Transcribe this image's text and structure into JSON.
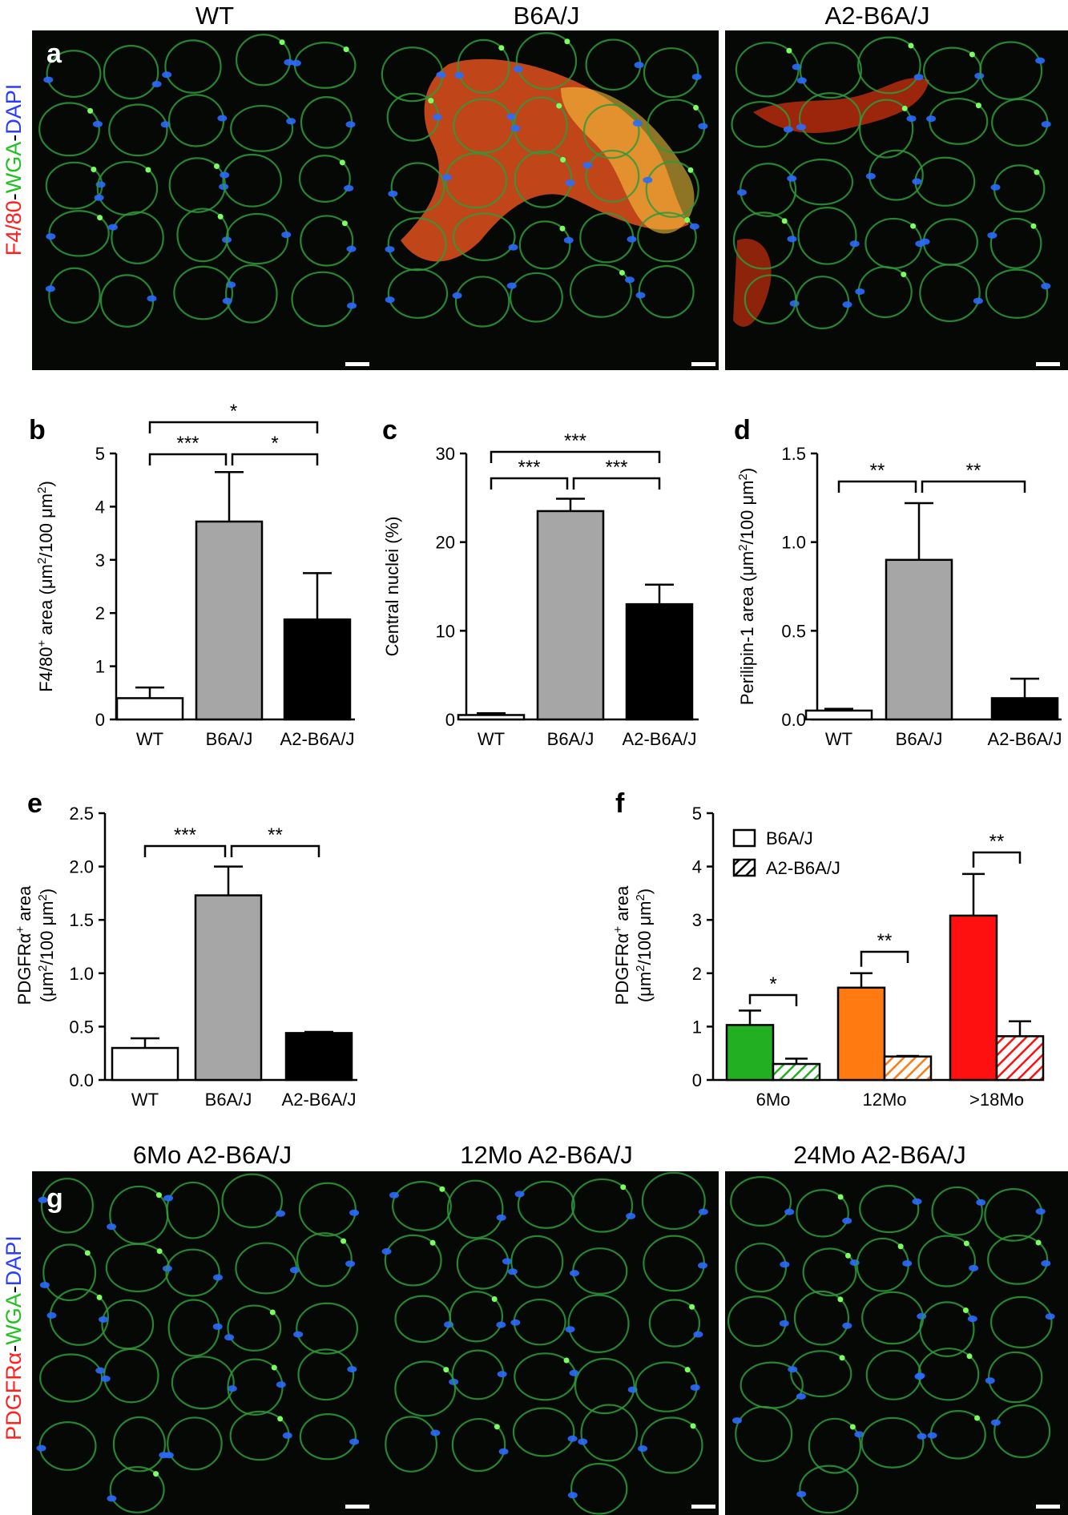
{
  "figure": {
    "top_headers": [
      "WT",
      "B6A/J",
      "A2-B6A/J"
    ],
    "bottom_headers": [
      "6Mo A2-B6A/J",
      "12Mo A2-B6A/J",
      "24Mo A2-B6A/J"
    ],
    "stain_a": {
      "parts": [
        {
          "text": "F4/80",
          "color": "#ff2020"
        },
        {
          "text": "-",
          "color": "#000000"
        },
        {
          "text": "WGA",
          "color": "#22c022"
        },
        {
          "text": "-",
          "color": "#000000"
        },
        {
          "text": "DAPI",
          "color": "#2a3cff"
        }
      ]
    },
    "stain_g": {
      "parts": [
        {
          "text": "PDGFRα",
          "color": "#ff2020"
        },
        {
          "text": "-",
          "color": "#000000"
        },
        {
          "text": "WGA",
          "color": "#22c022"
        },
        {
          "text": "-",
          "color": "#000000"
        },
        {
          "text": "DAPI",
          "color": "#2a3cff"
        }
      ]
    },
    "panel_letters": {
      "a": "a",
      "b": "b",
      "c": "c",
      "d": "d",
      "e": "e",
      "f": "f",
      "g": "g"
    },
    "colors": {
      "wt_fill": "#ffffff",
      "b6aj_fill": "#a6a6a6",
      "a2_fill": "#000000",
      "six_mo": "#22b022",
      "twelve_mo": "#ff7a10",
      "eighteen_mo": "#ff1010"
    }
  },
  "chart_data": [
    {
      "id": "b",
      "type": "bar",
      "categories": [
        "WT",
        "B6A/J",
        "A2-B6A/J"
      ],
      "values": [
        0.4,
        3.72,
        1.88
      ],
      "errors": [
        0.2,
        0.93,
        0.87
      ],
      "ylabel": "F4/80+ area (μm2/100 μm2)",
      "ylabel_parts": [
        "F4/80",
        "+",
        " area (μm",
        "2",
        "/100 μm",
        "2",
        ")"
      ],
      "ylim": [
        0,
        5
      ],
      "yticks": [
        0,
        1,
        2,
        3,
        4,
        5
      ],
      "ytick_labels": [
        "0",
        "1",
        "2",
        "3",
        "4",
        "5"
      ],
      "significance": [
        {
          "from": 0,
          "to": 1,
          "label": "***",
          "level": 1
        },
        {
          "from": 1,
          "to": 2,
          "label": "*",
          "level": 1
        },
        {
          "from": 0,
          "to": 2,
          "label": "*",
          "level": 2
        }
      ]
    },
    {
      "id": "c",
      "type": "bar",
      "categories": [
        "WT",
        "B6A/J",
        "A2-B6A/J"
      ],
      "values": [
        0.5,
        23.5,
        13.0
      ],
      "errors": [
        0.2,
        1.4,
        2.2
      ],
      "ylabel": "Central nuclei (%)",
      "ylabel_parts": [
        "Central nuclei (%)"
      ],
      "ylim": [
        0,
        30
      ],
      "yticks": [
        0,
        10,
        20,
        30
      ],
      "ytick_labels": [
        "0",
        "10",
        "20",
        "30"
      ],
      "significance": [
        {
          "from": 0,
          "to": 1,
          "label": "***",
          "level": 1
        },
        {
          "from": 1,
          "to": 2,
          "label": "***",
          "level": 1
        },
        {
          "from": 0,
          "to": 2,
          "label": "***",
          "level": 2
        }
      ]
    },
    {
      "id": "d",
      "type": "bar",
      "categories": [
        "WT",
        "B6A/J",
        "A2-B6A/J"
      ],
      "values": [
        0.05,
        0.9,
        0.12
      ],
      "errors": [
        0.01,
        0.32,
        0.11
      ],
      "ylabel": "Perilipin-1 area (μm2/100 μm2)",
      "ylabel_parts": [
        "Perilipin-1 area (μm",
        "2",
        "/100 μm",
        "2",
        ")"
      ],
      "ylim": [
        0,
        1.5
      ],
      "yticks": [
        0,
        0.5,
        1.0,
        1.5
      ],
      "ytick_labels": [
        "0.0",
        "0.5",
        "1.0",
        "1.5"
      ],
      "significance": [
        {
          "from": 0,
          "to": 1,
          "label": "**",
          "level": 1
        },
        {
          "from": 1,
          "to": 2,
          "label": "**",
          "level": 1
        }
      ]
    },
    {
      "id": "e",
      "type": "bar",
      "categories": [
        "WT",
        "B6A/J",
        "A2-B6A/J"
      ],
      "values": [
        0.3,
        1.73,
        0.44
      ],
      "errors": [
        0.09,
        0.27,
        0.01
      ],
      "ylabel_line1": "PDGFRα+ area",
      "ylabel_line2": "(μm2/100 μm2)",
      "ylabel1_parts": [
        "PDGFRα",
        "+",
        " area"
      ],
      "ylabel2_parts": [
        "(μm",
        "2",
        "/100 μm",
        "2",
        ")"
      ],
      "ylim": [
        0,
        2.5
      ],
      "yticks": [
        0,
        0.5,
        1.0,
        1.5,
        2.0,
        2.5
      ],
      "ytick_labels": [
        "0.0",
        "0.5",
        "1.0",
        "1.5",
        "2.0",
        "2.5"
      ],
      "significance": [
        {
          "from": 0,
          "to": 1,
          "label": "***",
          "level": 1
        },
        {
          "from": 1,
          "to": 2,
          "label": "**",
          "level": 1
        }
      ]
    },
    {
      "id": "f",
      "type": "bar",
      "categories": [
        "6Mo",
        "12Mo",
        ">18Mo"
      ],
      "series": [
        {
          "name": "B6A/J",
          "values": [
            1.03,
            1.73,
            3.08
          ],
          "errors": [
            0.27,
            0.27,
            0.78
          ]
        },
        {
          "name": "A2-B6A/J",
          "values": [
            0.3,
            0.44,
            0.82
          ],
          "errors": [
            0.1,
            0.01,
            0.28
          ]
        }
      ],
      "ylabel_line1": "PDGFRα+ area",
      "ylabel_line2": "(μm2/100 μm2)",
      "ylabel1_parts": [
        "PDGFRα",
        "+",
        " area"
      ],
      "ylabel2_parts": [
        "(μm",
        "2",
        "/100 μm",
        "2",
        ")"
      ],
      "ylim": [
        0,
        5
      ],
      "yticks": [
        0,
        1,
        2,
        3,
        4,
        5
      ],
      "ytick_labels": [
        "0",
        "1",
        "2",
        "3",
        "4",
        "5"
      ],
      "legend": [
        "B6A/J",
        "A2-B6A/J"
      ],
      "legend_position": "top-left",
      "significance": [
        {
          "group": 0,
          "label": "*"
        },
        {
          "group": 1,
          "label": "**"
        },
        {
          "group": 2,
          "label": "**"
        }
      ]
    }
  ]
}
